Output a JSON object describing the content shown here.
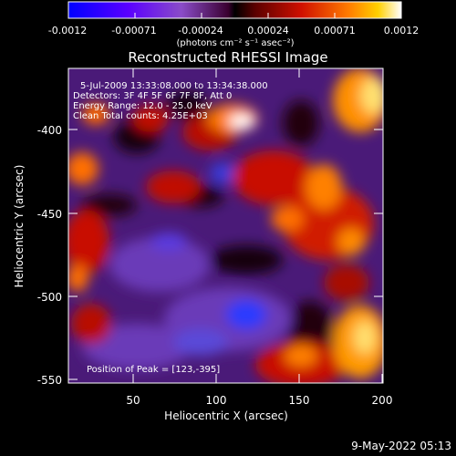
{
  "colorbar": {
    "ticks": [
      "-0.0012",
      "-0.00071",
      "-0.00024",
      "0.00024",
      "0.00071",
      "0.0012"
    ],
    "unit_label": "(photons cm⁻² s⁻¹ asec⁻²)",
    "colors": [
      "#0000ff",
      "#7a00ff",
      "#9a46a8",
      "#6b0000",
      "#cc0000",
      "#ff6a00",
      "#ffd000",
      "#ffffff"
    ]
  },
  "plot": {
    "title": "Reconstructed RHESSI Image",
    "xlabel": "Heliocentric X (arcsec)",
    "ylabel": "Heliocentric Y (arcsec)",
    "xticks": [
      "50",
      "100",
      "150",
      "200"
    ],
    "yticks": [
      "-400",
      "-450",
      "-500",
      "-550"
    ],
    "info_lines": [
      "5-Jul-2009 13:33:08.000 to 13:34:38.000",
      "Detectors: 3F 4F 5F 6F 7F 8F, Att 0",
      "Energy Range: 12.0 - 25.0 keV",
      "Clean    Total counts: 4.25E+03"
    ],
    "peak_label": "Position of Peak = [123,-395]",
    "xlim": [
      12,
      200
    ],
    "ylim": [
      -555,
      -372
    ]
  },
  "footer": {
    "date": "9-May-2022 05:13"
  }
}
